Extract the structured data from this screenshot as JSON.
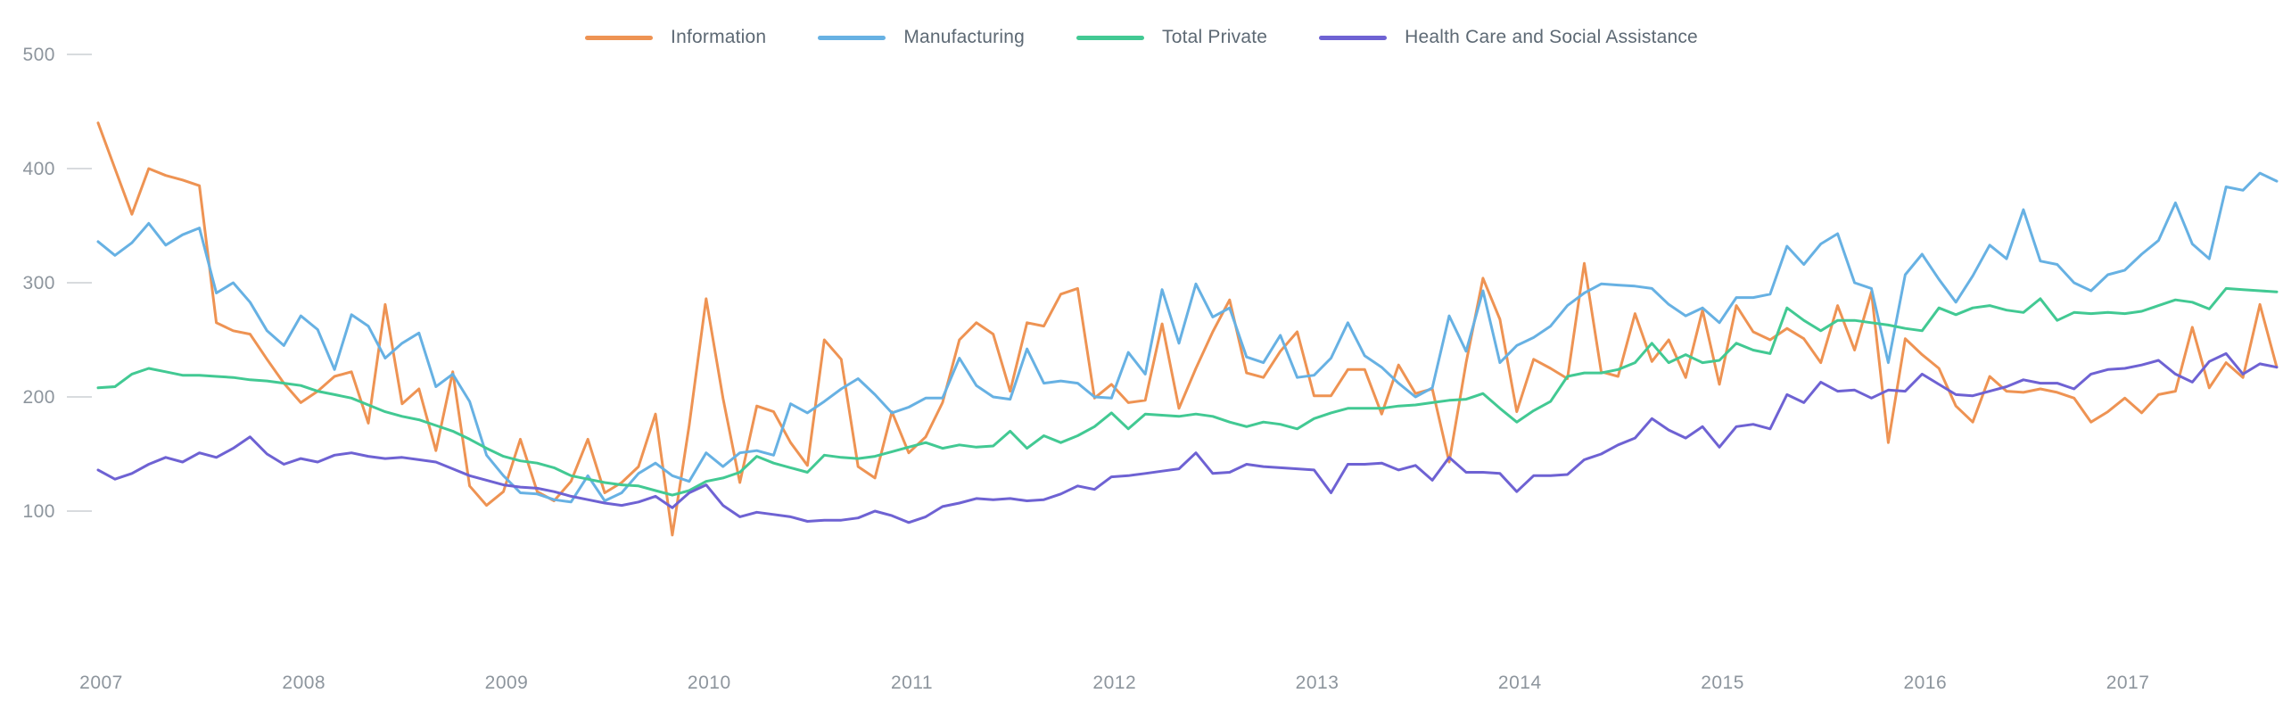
{
  "chart_data": {
    "type": "line",
    "title": "",
    "xlabel": "",
    "ylabel": "",
    "x_unit": "month",
    "x_range": "2007-01 to 2017-10",
    "grid": "none",
    "legend_position": "top-center",
    "background": "#ffffff",
    "axis_text_color": "#8d959d",
    "legend_text_color": "#5d6974",
    "tick_dash_color": "#d8dbde",
    "y_tick_labels": [
      "500",
      "400",
      "300",
      "200",
      "100"
    ],
    "y_tick_values": [
      500,
      400,
      300,
      200,
      100
    ],
    "x_tick_labels": [
      "2007",
      "2008",
      "2009",
      "2010",
      "2011",
      "2012",
      "2013",
      "2014",
      "2015",
      "2016",
      "2017"
    ],
    "ylim": [
      60,
      520
    ],
    "series": [
      {
        "name": "Information",
        "color": "#ee9353",
        "values": [
          440,
          400,
          360,
          400,
          394,
          390,
          385,
          265,
          258,
          255,
          233,
          212,
          195,
          205,
          218,
          222,
          177,
          281,
          194,
          207,
          153,
          222,
          122,
          105,
          117,
          163,
          117,
          109,
          126,
          163,
          116,
          125,
          139,
          185,
          79,
          175,
          286,
          199,
          125,
          192,
          187,
          160,
          140,
          250,
          233,
          139,
          129,
          187,
          151,
          165,
          195,
          250,
          265,
          255,
          205,
          265,
          262,
          290,
          295,
          199,
          211,
          195,
          197,
          264,
          190,
          225,
          257,
          285,
          221,
          217,
          240,
          257,
          201,
          201,
          224,
          224,
          185,
          228,
          203,
          207,
          143,
          230,
          304,
          268,
          187,
          233,
          225,
          216,
          317,
          222,
          218,
          273,
          231,
          250,
          217,
          276,
          211,
          280,
          257,
          250,
          260,
          251,
          230,
          280,
          241,
          292,
          160,
          251,
          237,
          225,
          192,
          178,
          218,
          205,
          204,
          207,
          204,
          199,
          178,
          187,
          199,
          186,
          202,
          205,
          261,
          208,
          230,
          217,
          281,
          226
        ]
      },
      {
        "name": "Manufacturing",
        "color": "#67b1e3",
        "values": [
          336,
          324,
          335,
          352,
          333,
          342,
          348,
          291,
          300,
          283,
          258,
          245,
          271,
          259,
          224,
          272,
          262,
          234,
          247,
          256,
          209,
          220,
          196,
          149,
          131,
          116,
          115,
          110,
          108,
          131,
          109,
          116,
          133,
          142,
          131,
          126,
          151,
          139,
          151,
          153,
          149,
          194,
          186,
          196,
          207,
          216,
          202,
          186,
          191,
          199,
          199,
          234,
          210,
          200,
          198,
          242,
          212,
          214,
          212,
          200,
          199,
          239,
          220,
          294,
          247,
          299,
          270,
          278,
          235,
          230,
          254,
          217,
          219,
          234,
          265,
          236,
          226,
          212,
          200,
          208,
          271,
          240,
          293,
          230,
          245,
          252,
          262,
          280,
          291,
          299,
          298,
          297,
          295,
          281,
          271,
          278,
          265,
          287,
          287,
          290,
          332,
          316,
          334,
          343,
          300,
          295,
          230,
          307,
          325,
          303,
          283,
          306,
          333,
          321,
          364,
          319,
          316,
          300,
          293,
          307,
          311,
          325,
          337,
          370,
          334,
          321,
          384,
          381,
          396,
          389
        ]
      },
      {
        "name": "Total Private",
        "color": "#42c993",
        "values": [
          208,
          209,
          220,
          225,
          222,
          219,
          219,
          218,
          217,
          215,
          214,
          212,
          210,
          205,
          202,
          199,
          193,
          187,
          183,
          180,
          175,
          170,
          163,
          155,
          148,
          144,
          142,
          138,
          131,
          128,
          125,
          123,
          122,
          118,
          114,
          118,
          126,
          129,
          134,
          148,
          142,
          138,
          134,
          149,
          147,
          146,
          148,
          152,
          156,
          160,
          155,
          158,
          156,
          157,
          170,
          155,
          166,
          160,
          166,
          174,
          186,
          172,
          185,
          184,
          183,
          185,
          183,
          178,
          174,
          178,
          176,
          172,
          181,
          186,
          190,
          190,
          190,
          192,
          193,
          195,
          197,
          198,
          203,
          190,
          178,
          188,
          196,
          218,
          221,
          221,
          224,
          230,
          247,
          230,
          237,
          230,
          232,
          247,
          241,
          238,
          278,
          267,
          258,
          267,
          267,
          265,
          263,
          260,
          258,
          278,
          272,
          278,
          280,
          276,
          274,
          286,
          267,
          274,
          273,
          274,
          273,
          275,
          280,
          285,
          283,
          277,
          295,
          294,
          293,
          292
        ]
      },
      {
        "name": "Health Care and Social Assistance",
        "color": "#6e62d3",
        "values": [
          136,
          128,
          133,
          141,
          147,
          143,
          151,
          147,
          155,
          165,
          150,
          141,
          146,
          143,
          149,
          151,
          148,
          146,
          147,
          145,
          143,
          137,
          131,
          127,
          123,
          121,
          120,
          117,
          113,
          110,
          107,
          105,
          108,
          113,
          103,
          116,
          123,
          105,
          95,
          99,
          97,
          95,
          91,
          92,
          92,
          94,
          100,
          96,
          90,
          95,
          104,
          107,
          111,
          110,
          111,
          109,
          110,
          115,
          122,
          119,
          130,
          131,
          133,
          135,
          137,
          151,
          133,
          134,
          141,
          139,
          138,
          137,
          136,
          116,
          141,
          141,
          142,
          136,
          140,
          127,
          147,
          134,
          134,
          133,
          117,
          131,
          131,
          132,
          145,
          150,
          158,
          164,
          181,
          171,
          164,
          174,
          156,
          174,
          176,
          172,
          202,
          195,
          213,
          205,
          206,
          199,
          206,
          205,
          220,
          211,
          202,
          201,
          205,
          209,
          215,
          212,
          212,
          207,
          220,
          224,
          225,
          228,
          232,
          220,
          213,
          231,
          238,
          220,
          229,
          226
        ]
      }
    ]
  }
}
